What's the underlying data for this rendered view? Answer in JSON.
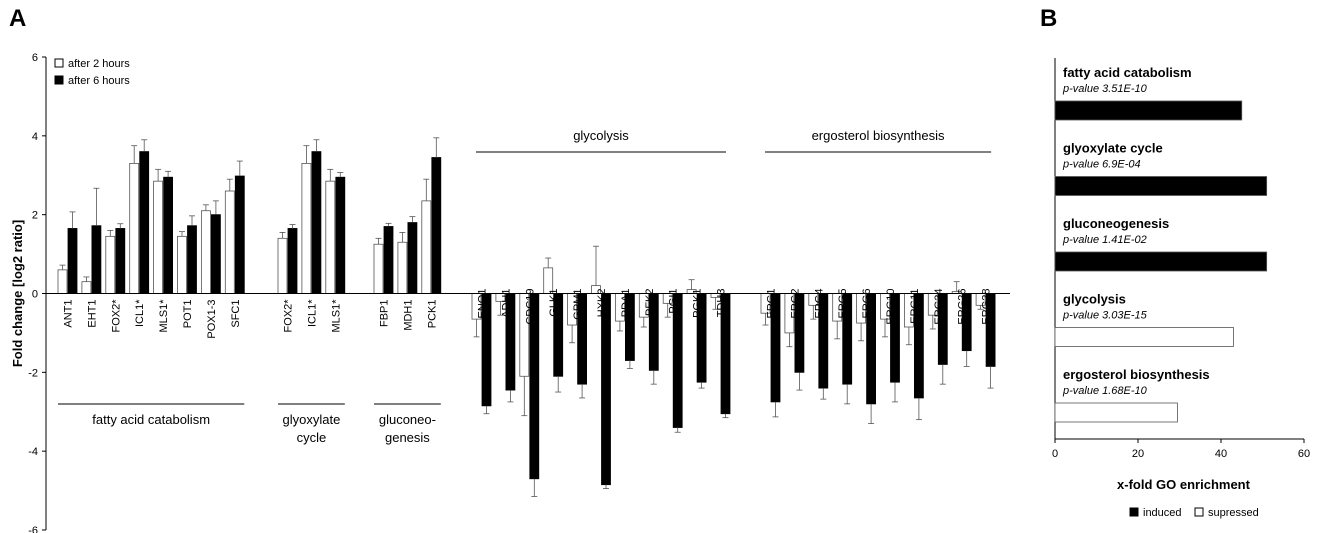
{
  "chart_data": [
    {
      "panel": "A",
      "type": "bar",
      "ylabel": "Fold change [log2 ratio]",
      "ylim": [
        -6,
        6
      ],
      "yticks": [
        -6,
        -4,
        -2,
        0,
        2,
        4,
        6
      ],
      "legend": [
        "after 2 hours",
        "after 6 hours"
      ],
      "legend_position": "top-left",
      "series_colors": {
        "after 2 hours": "#ffffff",
        "after 6 hours": "#000000"
      },
      "groups": [
        {
          "label": [
            "fatty acid catabolism"
          ],
          "label_position": "bottom",
          "genes": [
            {
              "name": "ANT1",
              "v2": 0.6,
              "e2": 0.12,
              "v6": 1.65,
              "e6": 0.42
            },
            {
              "name": "EHT1",
              "v2": 0.3,
              "e2": 0.12,
              "v6": 1.72,
              "e6": 0.95
            },
            {
              "name": "FOX2*",
              "v2": 1.45,
              "e2": 0.15,
              "v6": 1.65,
              "e6": 0.12
            },
            {
              "name": "ICL1*",
              "v2": 3.3,
              "e2": 0.45,
              "v6": 3.6,
              "e6": 0.3
            },
            {
              "name": "MLS1*",
              "v2": 2.85,
              "e2": 0.3,
              "v6": 2.95,
              "e6": 0.15
            },
            {
              "name": "POT1",
              "v2": 1.45,
              "e2": 0.12,
              "v6": 1.72,
              "e6": 0.25
            },
            {
              "name": "POX1-3",
              "v2": 2.1,
              "e2": 0.15,
              "v6": 2.0,
              "e6": 0.35
            },
            {
              "name": "SFC1",
              "v2": 2.6,
              "e2": 0.3,
              "v6": 2.98,
              "e6": 0.38
            }
          ]
        },
        {
          "label": [
            "glyoxylate",
            "cycle"
          ],
          "label_position": "bottom",
          "genes": [
            {
              "name": "FOX2*",
              "v2": 1.4,
              "e2": 0.15,
              "v6": 1.65,
              "e6": 0.1
            },
            {
              "name": "ICL1*",
              "v2": 3.3,
              "e2": 0.45,
              "v6": 3.6,
              "e6": 0.3
            },
            {
              "name": "MLS1*",
              "v2": 2.85,
              "e2": 0.3,
              "v6": 2.95,
              "e6": 0.12
            }
          ]
        },
        {
          "label": [
            "gluconeo-",
            "genesis"
          ],
          "label_position": "bottom",
          "genes": [
            {
              "name": "FBP1",
              "v2": 1.25,
              "e2": 0.15,
              "v6": 1.7,
              "e6": 0.08
            },
            {
              "name": "MDH1",
              "v2": 1.3,
              "e2": 0.25,
              "v6": 1.8,
              "e6": 0.15
            },
            {
              "name": "PCK1",
              "v2": 2.35,
              "e2": 0.55,
              "v6": 3.45,
              "e6": 0.5
            }
          ]
        },
        {
          "label": [
            "glycolysis"
          ],
          "label_position": "top",
          "genes": [
            {
              "name": "ENO1",
              "v2": -0.65,
              "e2": 0.45,
              "v6": -2.85,
              "e6": 0.2
            },
            {
              "name": "ADH1",
              "v2": -0.2,
              "e2": 0.35,
              "v6": -2.45,
              "e6": 0.3
            },
            {
              "name": "CDC19",
              "v2": -2.1,
              "e2": 1.0,
              "v6": -4.7,
              "e6": 0.45
            },
            {
              "name": "GLK1",
              "v2": 0.65,
              "e2": 0.25,
              "v6": -2.1,
              "e6": 0.4
            },
            {
              "name": "GPM1",
              "v2": -0.8,
              "e2": 0.45,
              "v6": -2.3,
              "e6": 0.35
            },
            {
              "name": "HXK2",
              "v2": 0.2,
              "e2": 1.0,
              "v6": -4.85,
              "e6": 0.1
            },
            {
              "name": "PDA1",
              "v2": -0.7,
              "e2": 0.25,
              "v6": -1.7,
              "e6": 0.2
            },
            {
              "name": "PFK2",
              "v2": -0.6,
              "e2": 0.25,
              "v6": -1.95,
              "e6": 0.35
            },
            {
              "name": "PGI1",
              "v2": -0.25,
              "e2": 0.35,
              "v6": -3.4,
              "e6": 0.12
            },
            {
              "name": "PGK1",
              "v2": 0.1,
              "e2": 0.25,
              "v6": -2.25,
              "e6": 0.15
            },
            {
              "name": "TDH3",
              "v2": -0.1,
              "e2": 0.3,
              "v6": -3.05,
              "e6": 0.1
            }
          ]
        },
        {
          "label": [
            "ergosterol biosynthesis"
          ],
          "label_position": "top",
          "genes": [
            {
              "name": "ERG1",
              "v2": -0.5,
              "e2": 0.3,
              "v6": -2.75,
              "e6": 0.38
            },
            {
              "name": "ERG2",
              "v2": -1.0,
              "e2": 0.35,
              "v6": -2.0,
              "e6": 0.45
            },
            {
              "name": "ERG4",
              "v2": -0.3,
              "e2": 0.35,
              "v6": -2.4,
              "e6": 0.28
            },
            {
              "name": "ERG5",
              "v2": -0.7,
              "e2": 0.45,
              "v6": -2.3,
              "e6": 0.5
            },
            {
              "name": "ERG6",
              "v2": -0.75,
              "e2": 0.45,
              "v6": -2.8,
              "e6": 0.5
            },
            {
              "name": "ERG10",
              "v2": -0.65,
              "e2": 0.45,
              "v6": -2.25,
              "e6": 0.5
            },
            {
              "name": "ERG11",
              "v2": -0.85,
              "e2": 0.45,
              "v6": -2.65,
              "e6": 0.55
            },
            {
              "name": "ERG24",
              "v2": -0.55,
              "e2": 0.35,
              "v6": -1.8,
              "e6": 0.5
            },
            {
              "name": "ERG26",
              "v2": 0.05,
              "e2": 0.25,
              "v6": -1.45,
              "e6": 0.4
            },
            {
              "name": "ERG28",
              "v2": -0.3,
              "e2": 0.1,
              "v6": -1.85,
              "e6": 0.55
            }
          ]
        }
      ]
    },
    {
      "panel": "B",
      "type": "bar",
      "orientation": "horizontal",
      "xlabel": "x-fold GO enrichment",
      "xlim": [
        0,
        60
      ],
      "xticks": [
        0,
        20,
        40,
        60
      ],
      "legend": [
        "induced",
        "supressed"
      ],
      "legend_position": "bottom",
      "series_colors": {
        "induced": "#000000",
        "supressed": "#ffffff"
      },
      "categories": [
        {
          "term": "fatty acid catabolism",
          "pvalue": "p-value 3.51E-10",
          "value": 45,
          "type": "induced"
        },
        {
          "term": "glyoxylate cycle",
          "pvalue": "p-value 6.9E-04",
          "value": 51,
          "type": "induced"
        },
        {
          "term": "gluconeogenesis",
          "pvalue": "p-value 1.41E-02",
          "value": 51,
          "type": "induced"
        },
        {
          "term": "glycolysis",
          "pvalue": "p-value 3.03E-15",
          "value": 43,
          "type": "supressed"
        },
        {
          "term": "ergosterol biosynthesis",
          "pvalue": "p-value 1.68E-10",
          "value": 29.5,
          "type": "supressed"
        }
      ]
    }
  ]
}
